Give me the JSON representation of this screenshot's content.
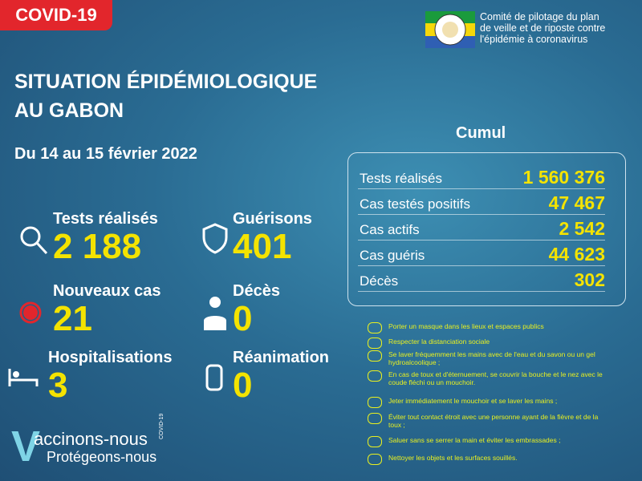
{
  "badge": "COVID-19",
  "committee": [
    "Comité de pilotage du plan",
    "de veille et de riposte contre",
    "l'épidémie à coronavirus"
  ],
  "title": [
    "SITUATION ÉPIDÉMIOLOGIQUE",
    "AU GABON"
  ],
  "period": "Du 14 au 15 février 2022",
  "daily": [
    {
      "label": "Tests réalisés",
      "value": "2 188"
    },
    {
      "label": "Guérisons",
      "value": "401"
    },
    {
      "label": "Nouveaux cas",
      "value": "21"
    },
    {
      "label": "Décès",
      "value": "0"
    },
    {
      "label": "Hospitalisations",
      "value": "3"
    },
    {
      "label": "Réanimation",
      "value": "0"
    }
  ],
  "cumul": {
    "title": "Cumul",
    "rows": [
      {
        "label": "Tests réalisés",
        "value": "1 560 376"
      },
      {
        "label": "Cas testés positifs",
        "value": "47 467"
      },
      {
        "label": "Cas actifs",
        "value": "2 542"
      },
      {
        "label": "Cas guéris",
        "value": "44 623"
      },
      {
        "label": "Décès",
        "value": "302"
      }
    ]
  },
  "advice": [
    "Porter un masque dans les lieux et espaces publics",
    "Respecter la distanciation sociale",
    "Se laver fréquemment les mains avec de l'eau et du savon ou un gel hydroalcoolique ;",
    "En cas de toux et d'éternuement, se couvrir la bouche et le nez avec le coude fléchi ou un mouchoir.",
    "Jeter immédiatement le mouchoir et se laver les mains ;",
    "Éviter tout contact étroit avec une personne ayant de la fièvre et de la toux ;",
    "Saluer sans se serrer la main et éviter les embrassades ;",
    "Nettoyer les objets et les surfaces souillés."
  ],
  "slogan": {
    "initial": "V",
    "line1": "accinons-nous",
    "line2": "Protégeons-nous",
    "tag": "COVID-19"
  }
}
